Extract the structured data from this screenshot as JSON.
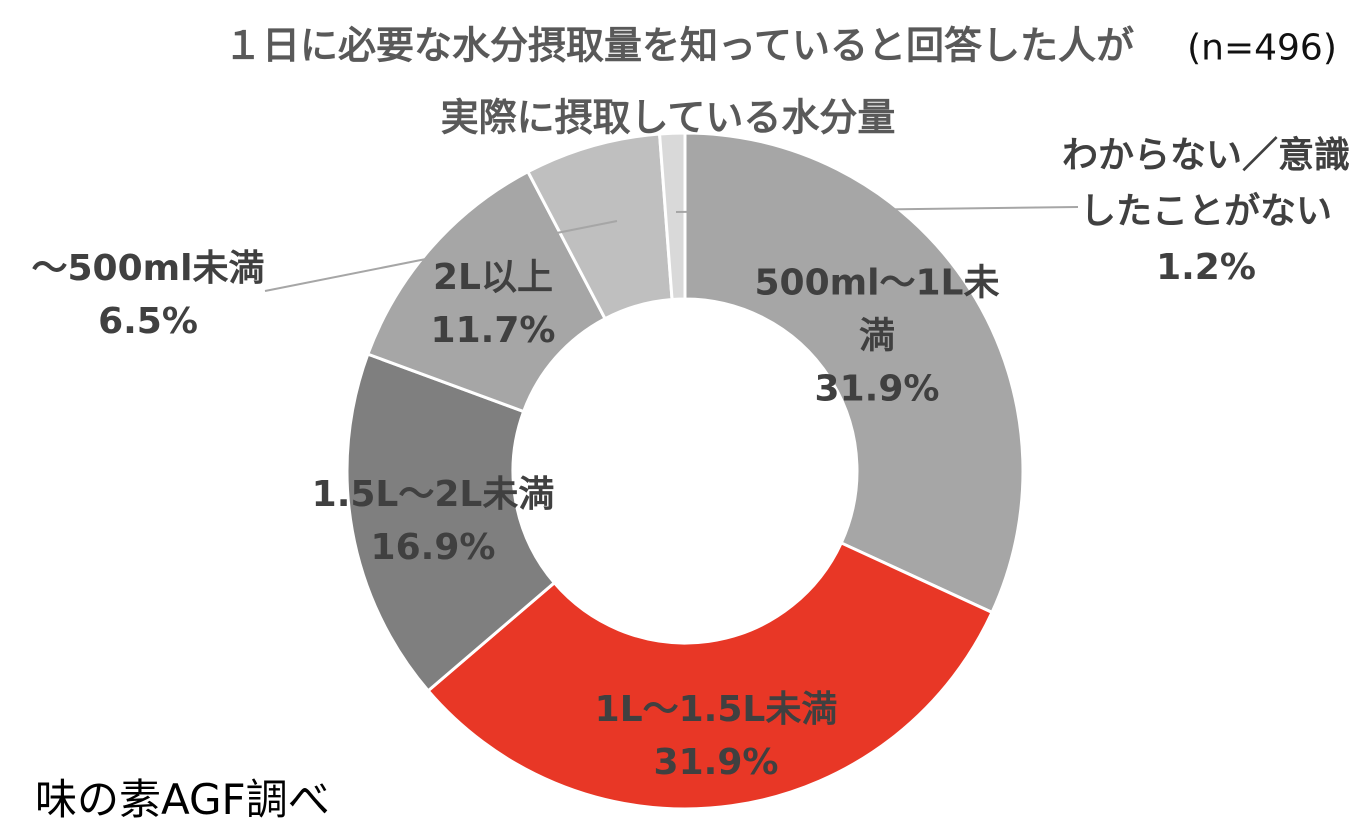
{
  "title": {
    "line1": "１日に必要な水分摂取量を知っていると回答した人が",
    "line2": "実際に摂取している水分量",
    "sample_size": "(n=496)"
  },
  "source": "味の素AGF調べ",
  "chart_data": {
    "type": "pie",
    "subtype": "donut",
    "title": "１日に必要な水分摂取量を知っていると回答した人が実際に摂取している水分量",
    "sample_size": 496,
    "unit": "%",
    "categories": [
      "500ml〜1L未満",
      "1L〜1.5L未満",
      "1.5L〜2L未満",
      "2L以上",
      "〜500ml未満",
      "わからない／意識したことがない"
    ],
    "values": [
      31.9,
      31.9,
      16.9,
      11.7,
      6.5,
      1.2
    ],
    "colors": [
      "#a6a6a6",
      "#e83726",
      "#7f7f7f",
      "#a6a6a6",
      "#bfbfbf",
      "#d9d9d9"
    ],
    "highlight_color": "#e83726",
    "start_angle_deg": 0,
    "direction": "clockwise",
    "hole_ratio": 0.51,
    "legend": "none",
    "labels": [
      {
        "lines": {
          "0": "500ml〜1L未",
          "1": "満",
          "2": "31.9%"
        }
      },
      {
        "lines": {
          "0": "1L〜1.5L未満",
          "1": "31.9%"
        }
      },
      {
        "lines": {
          "0": "1.5L〜2L未満",
          "1": "16.9%"
        }
      },
      {
        "lines": {
          "0": "2L以上",
          "1": "11.7%"
        }
      },
      {
        "lines": {
          "0": "〜500ml未満",
          "1": "6.5%"
        }
      },
      {
        "lines": {
          "0": "わからない／意識",
          "1": "したことがない",
          "2": "1.2%"
        }
      }
    ]
  }
}
